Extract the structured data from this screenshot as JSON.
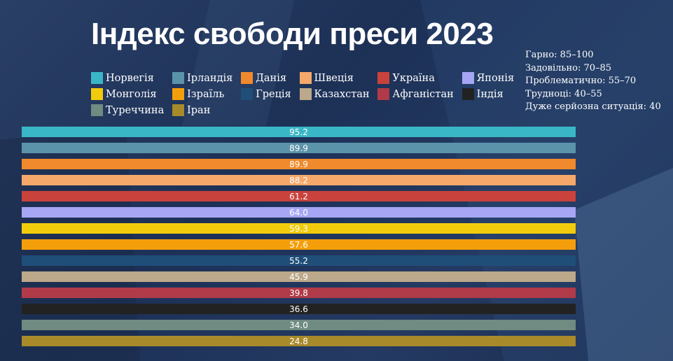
{
  "title": "Індекс свободи преси 2023",
  "scale_legend": [
    "Гарно: 85–100",
    "Задовільно: 70–85",
    "Проблематично: 55–70",
    "Трудноці: 40–55",
    "Дуже серйозна ситуація: 40"
  ],
  "chart_data": {
    "type": "bar",
    "orientation": "horizontal",
    "title": "Індекс свободи преси 2023",
    "legend_placement": "top",
    "categories": [
      "Норвегія",
      "Ірландія",
      "Данія",
      "Швеція",
      "Україна",
      "Японія",
      "Монголія",
      "Ізраїль",
      "Греція",
      "Казахстан",
      "Афганістан",
      "Індія",
      "Туреччина",
      "Іран"
    ],
    "values": [
      95.2,
      89.9,
      89.9,
      88.2,
      61.2,
      64.0,
      59.3,
      57.6,
      55.2,
      45.9,
      39.8,
      36.6,
      34.0,
      24.8
    ],
    "value_labels": [
      "95.2",
      "89.9",
      "89.9",
      "88.2",
      "61.2",
      "64.0",
      "59.3",
      "57.6",
      "55.2",
      "45.9",
      "39.8",
      "36.6",
      "34.0",
      "24.8"
    ],
    "colors": [
      "#3ab7c6",
      "#5b93aa",
      "#f08a2c",
      "#f5a86a",
      "#c9423b",
      "#a6a6f5",
      "#f2cc0c",
      "#f59e0b",
      "#1f4e79",
      "#bca88a",
      "#b03a48",
      "#222222",
      "#6f8b82",
      "#a88a2a"
    ]
  }
}
